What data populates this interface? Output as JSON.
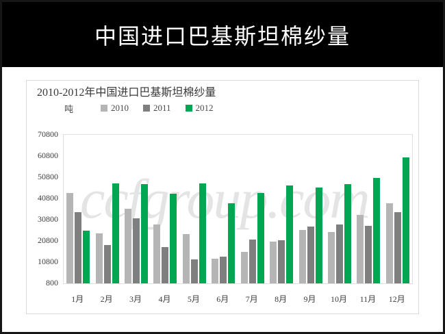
{
  "slide": {
    "header_title": "中国进口巴基斯坦棉纱量"
  },
  "chart_data": {
    "type": "bar",
    "title": "2010-2012年中国进口巴基斯坦棉纱量",
    "unit_label": "吨",
    "ylabel": "吨",
    "xlabel": "",
    "watermark": "ccfgroup.com",
    "categories": [
      "1月",
      "2月",
      "3月",
      "4月",
      "5月",
      "6月",
      "7月",
      "8月",
      "9月",
      "10月",
      "11月",
      "12月"
    ],
    "series": [
      {
        "name": "2010",
        "color": "#b5b5b5",
        "values": [
          43500,
          24500,
          36000,
          28500,
          24000,
          12500,
          15500,
          20500,
          26000,
          25000,
          33000,
          38500
        ]
      },
      {
        "name": "2011",
        "color": "#7f7f7f",
        "values": [
          34500,
          19000,
          31500,
          18000,
          12000,
          13500,
          21500,
          21000,
          27500,
          28500,
          28000,
          34500
        ]
      },
      {
        "name": "2012",
        "color": "#00a651",
        "values": [
          25500,
          48000,
          47500,
          43000,
          48000,
          38500,
          43500,
          47000,
          46000,
          47500,
          50500,
          60000
        ]
      }
    ],
    "ylim": [
      800,
      70800
    ],
    "yticks": [
      800,
      10800,
      20800,
      30800,
      40800,
      50800,
      60800,
      70800
    ],
    "grid": false,
    "legend_position": "top"
  }
}
